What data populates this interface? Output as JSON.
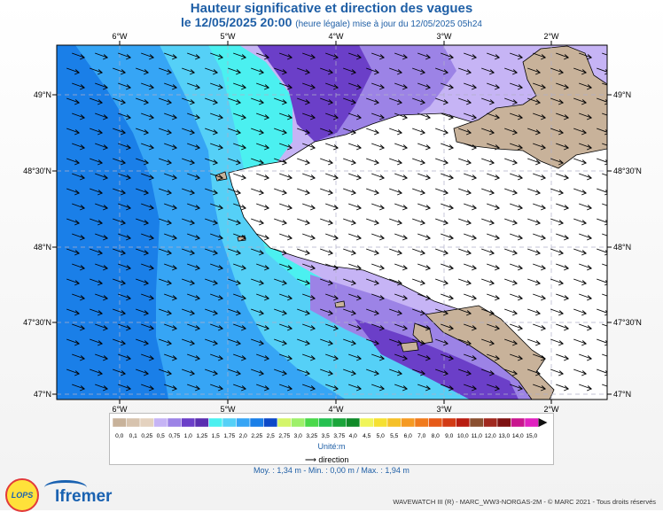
{
  "title": "Hauteur significative et direction des vagues",
  "subtitle_date": "le 12/05/2025 20:00",
  "subtitle_note": "(heure légale) mise à jour du 12/05/2025 05h24",
  "axes": {
    "lon_labels": [
      "6°W",
      "5°W",
      "4°W",
      "3°W",
      "2°W"
    ],
    "lat_labels": [
      "49°N",
      "48°30'N",
      "48°N",
      "47°30'N",
      "47°N"
    ]
  },
  "legend": {
    "values": [
      "0,0",
      "0,1",
      "0,25",
      "0,5",
      "0,75",
      "1,0",
      "1,25",
      "1,5",
      "1,75",
      "2,0",
      "2,25",
      "2,5",
      "2,75",
      "3,0",
      "3,25",
      "3,5",
      "3,75",
      "4,0",
      "4,5",
      "5,0",
      "5,5",
      "6,0",
      "7,0",
      "8,0",
      "9,0",
      "10,0",
      "11,0",
      "12,0",
      "13,0",
      "14,0",
      "15,0"
    ],
    "colors": [
      "#c8b29a",
      "#d7c3ae",
      "#e4d2bf",
      "#c6b4f5",
      "#9c83e6",
      "#6b3fc8",
      "#5a2fb0",
      "#4bf0f0",
      "#55d0f7",
      "#36a5f5",
      "#1a7fe8",
      "#0c49c8",
      "#d4f56a",
      "#9ef06a",
      "#4ad84a",
      "#26c050",
      "#1aa53a",
      "#0f8a28",
      "#f0f55a",
      "#f5e032",
      "#f5c028",
      "#f59a22",
      "#f07a1c",
      "#e65a18",
      "#d23a14",
      "#b81c10",
      "#8a5030",
      "#a0281e",
      "#7e1212",
      "#c8168e",
      "#e022c0"
    ],
    "unit": "Unité:m",
    "direction_label": "direction"
  },
  "stats": "Moy. : 1,34 m  -  Min. : 0,00 m / Max. : 1,94 m",
  "logos": {
    "lops": "LOPS",
    "ifremer": "Ifremer"
  },
  "credit": "WAVEWATCH III (R) - MARC_WW3-NORGAS-2M - © MARC 2021 - Tous droits réservés",
  "colors": {
    "title": "#1f5fa6",
    "land_fill": "#c8b29a",
    "no_data": "#ffffff",
    "dark_blue": "#1a7fe8",
    "mid_blue": "#36a5f5",
    "light_blue": "#55d0f7",
    "cyan": "#4bf0f0",
    "lavender": "#c6b4f5",
    "purple": "#9c83e6",
    "violet": "#6b3fc8"
  }
}
